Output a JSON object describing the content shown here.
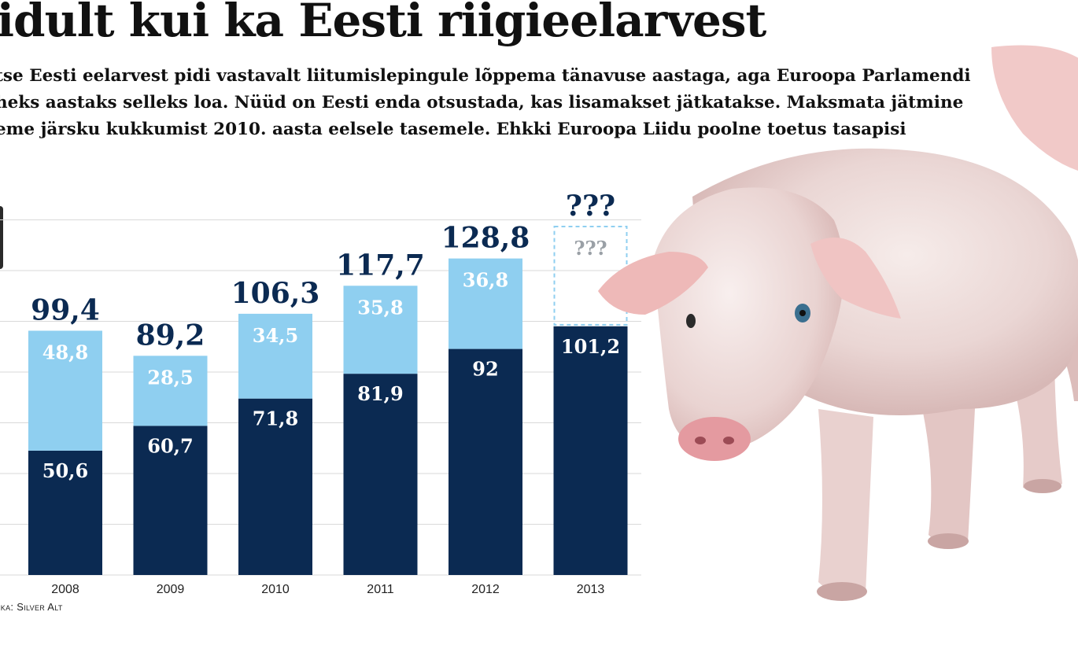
{
  "header": {
    "title": "idult kui ka Eesti riigieelarvest",
    "lead_lines": [
      "tse Eesti eelarvest pidi vastavalt liitumislepingule lõppema tänavuse aastaga, aga Euroopa Parlamendi",
      "heks aastaks selleks loa. Nüüd on Eesti enda otsustada, kas lisamakset jätkatakse. Maksmata jätmine",
      "eme järsku kukkumist 2010. aasta eelsele tasemele. Ehkki Euroopa Liidu poolne toetus tasapisi"
    ]
  },
  "credit": {
    "prefix": "ika: ",
    "name": "Silver Alt"
  },
  "colors": {
    "dark_bar": "#0b2a52",
    "light_bar": "#8fcff0",
    "total_label": "#0b2a52",
    "unknown_label": "#9aa0a6",
    "unknown_border": "#8fcff0",
    "grid": "#d9d9d9"
  },
  "illustration": {
    "icon": "pig-photo"
  },
  "chart_data": {
    "type": "bar",
    "stacked": true,
    "categories": [
      "2008",
      "2009",
      "2010",
      "2011",
      "2012",
      "2013"
    ],
    "series": [
      {
        "values": [
          50.6,
          60.7,
          71.8,
          81.9,
          92,
          101.2
        ],
        "labels": [
          "50,6",
          "60,7",
          "71,8",
          "81,9",
          "92",
          "101,2"
        ]
      },
      {
        "values": [
          48.8,
          28.5,
          34.5,
          35.8,
          36.8,
          null
        ],
        "labels": [
          "48,8",
          "28,5",
          "34,5",
          "35,8",
          "36,8",
          "???"
        ]
      }
    ],
    "totals": [
      99.4,
      89.2,
      106.3,
      117.7,
      128.8,
      null
    ],
    "total_labels": [
      "99,4",
      "89,2",
      "106,3",
      "117,7",
      "128,8",
      "???"
    ],
    "ylim": [
      0,
      145
    ],
    "grid": true,
    "legend": "none",
    "title": "",
    "xlabel": "",
    "ylabel": ""
  }
}
